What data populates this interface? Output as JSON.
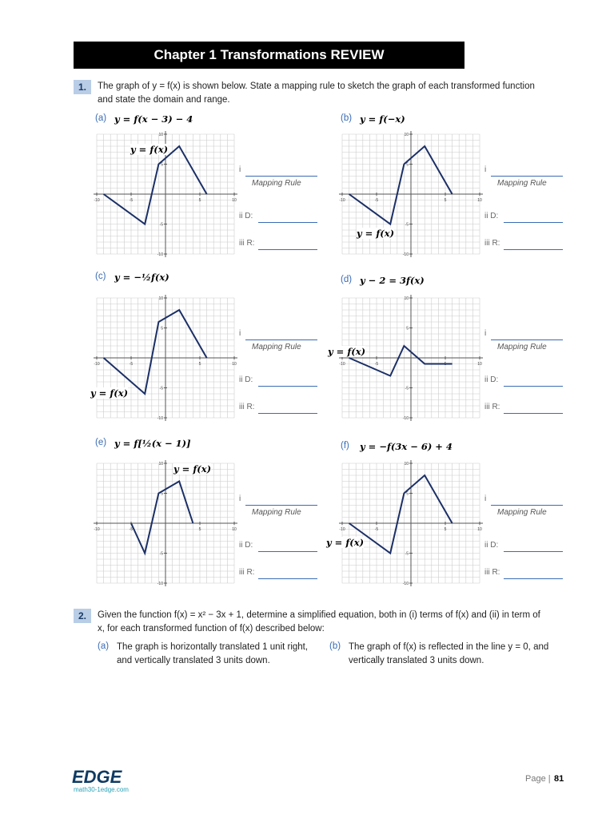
{
  "header": {
    "title": "Chapter 1 Transformations REVIEW"
  },
  "q1": {
    "number": "1.",
    "text": "The graph of y = f(x) is shown below.  State a mapping rule to sketch the graph of each transformed function and state the domain and range.",
    "ticks": [
      -10,
      -5,
      5,
      10
    ],
    "answer_labels": [
      "i",
      "Mapping Rule",
      "ii D:",
      "iii R:"
    ],
    "parts": [
      {
        "letter": "(a)",
        "equation": "y = f(x − 3) − 4",
        "graph_label": "y = f(x)",
        "points": {
          "x": [
            -9,
            -3,
            -1,
            2,
            6
          ],
          "y": [
            0,
            -5,
            5,
            8,
            0
          ]
        }
      },
      {
        "letter": "(b)",
        "equation": "y = f(−x)",
        "graph_label": "y = f(x)",
        "points": {
          "x": [
            -9,
            -3,
            -1,
            2,
            6
          ],
          "y": [
            0,
            -5,
            5,
            8,
            0
          ]
        }
      },
      {
        "letter": "(c)",
        "equation": "y = −½f(x)",
        "graph_label": "y = f(x)",
        "points": {
          "x": [
            -9,
            -3,
            -1,
            2,
            6
          ],
          "y": [
            0,
            -6,
            6,
            8,
            0
          ]
        }
      },
      {
        "letter": "(d)",
        "equation": "y − 2 = 3f(x)",
        "graph_label": "y = f(x)",
        "points": {
          "x": [
            -9,
            -3,
            -1,
            2,
            6
          ],
          "y": [
            0,
            -3,
            2,
            -1,
            -1
          ]
        }
      },
      {
        "letter": "(e)",
        "equation": "y = f[½(x − 1)]",
        "graph_label": "y = f(x)",
        "points": {
          "x": [
            -5,
            -3,
            -1,
            2,
            4
          ],
          "y": [
            0,
            -5,
            5,
            7,
            0
          ]
        }
      },
      {
        "letter": "(f)",
        "equation": "y = −f(3x − 6) + 4",
        "graph_label": "y = f(x)",
        "points": {
          "x": [
            -9,
            -3,
            -1,
            2,
            6
          ],
          "y": [
            0,
            -5,
            5,
            8,
            0
          ]
        }
      }
    ]
  },
  "q2": {
    "number": "2.",
    "text": "Given the function f(x) = x² − 3x + 1, determine a simplified equation, both in (i) terms of f(x) and (ii) in term of x, for each transformed function of f(x) described below:",
    "parts": [
      {
        "letter": "(a)",
        "text": "The graph is horizontally translated 1 unit right, and vertically translated 3 units down."
      },
      {
        "letter": "(b)",
        "text": "The graph of f(x) is reflected in the line y = 0, and vertically translated 3 units down."
      }
    ]
  },
  "footer": {
    "logo": "EDGE",
    "site": "math30-1edge.com",
    "page_label": "Page |",
    "page_number": "81"
  }
}
